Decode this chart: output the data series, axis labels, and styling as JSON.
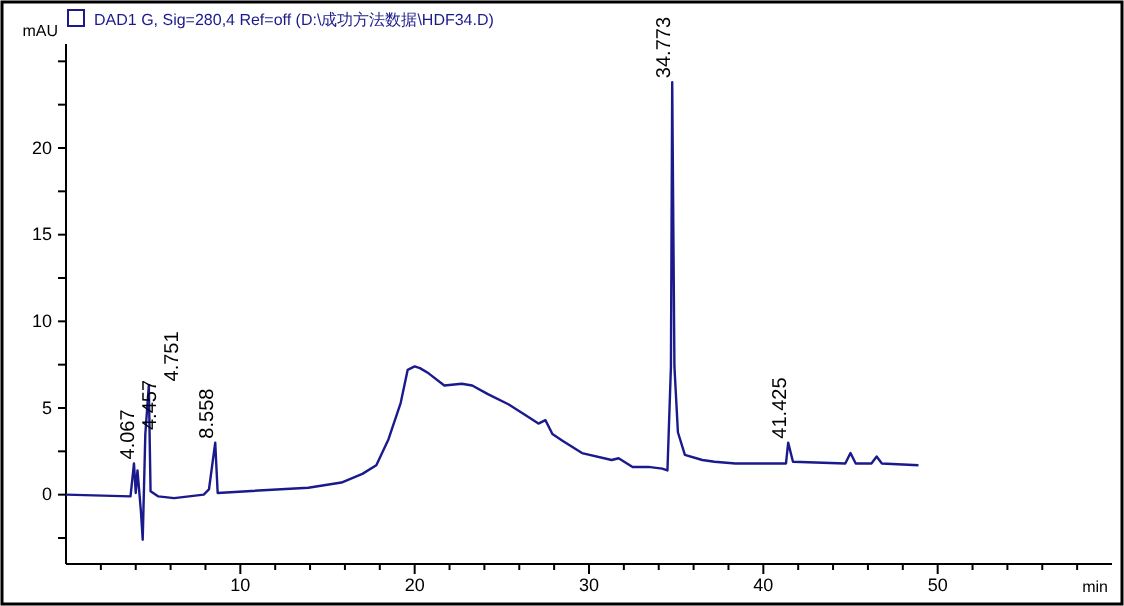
{
  "chart_data": {
    "type": "line",
    "xlabel": "min",
    "ylabel": "mAU",
    "legend": "top left",
    "grid": false,
    "xlim": [
      0,
      60
    ],
    "ylim": [
      -4,
      26
    ],
    "xticks": [
      {
        "value": 2,
        "label": null
      },
      {
        "value": 4,
        "label": null
      },
      {
        "value": 6,
        "label": null
      },
      {
        "value": 8,
        "label": null
      },
      10,
      {
        "value": 12,
        "label": null
      },
      {
        "value": 14,
        "label": null
      },
      {
        "value": 16,
        "label": null
      },
      {
        "value": 18,
        "label": null
      },
      20,
      {
        "value": 22,
        "label": null
      },
      {
        "value": 24,
        "label": null
      },
      {
        "value": 26,
        "label": null
      },
      {
        "value": 28,
        "label": null
      },
      30,
      {
        "value": 32,
        "label": null
      },
      {
        "value": 34,
        "label": null
      },
      {
        "value": 36,
        "label": null
      },
      {
        "value": 38,
        "label": null
      },
      40,
      {
        "value": 42,
        "label": null
      },
      {
        "value": 44,
        "label": null
      },
      {
        "value": 46,
        "label": null
      },
      {
        "value": 48,
        "label": null
      },
      50,
      {
        "value": 52,
        "label": null
      },
      {
        "value": 54,
        "label": null
      },
      {
        "value": 56,
        "label": null
      },
      {
        "value": 58,
        "label": null
      }
    ],
    "yticks": [
      {
        "value": -2.5,
        "label": null
      },
      0,
      {
        "value": 2.5,
        "label": null
      },
      5,
      {
        "value": 7.5,
        "label": null
      },
      10,
      {
        "value": 12.5,
        "label": null
      },
      15,
      {
        "value": 17.5,
        "label": null
      },
      20,
      {
        "value": 22.5,
        "label": null
      },
      {
        "value": 25,
        "label": null
      }
    ],
    "series": [
      {
        "name": "DAD1 G, Sig=280,4 Ref=off (D:\\成功方法数据\\HDF34.D)",
        "color": "#1a1a8c",
        "x": [
          0,
          3.7,
          3.9,
          4.0,
          4.1,
          4.2,
          4.3,
          4.4,
          4.55,
          4.75,
          4.85,
          5.3,
          6.2,
          7.9,
          8.2,
          8.56,
          8.7,
          10.4,
          13.9,
          15.8,
          17,
          17.8,
          18.5,
          19.2,
          19.6,
          20.0,
          20.3,
          20.8,
          21.7,
          22.7,
          23.3,
          24.2,
          25.4,
          26.5,
          27.1,
          27.5,
          27.9,
          28.5,
          29.6,
          31.3,
          31.7,
          32.5,
          33.4,
          34.2,
          34.5,
          34.7,
          34.773,
          34.9,
          35.1,
          35.5,
          36.5,
          37.2,
          38.4,
          41.3,
          41.425,
          41.7,
          44.7,
          45.0,
          45.3,
          46.2,
          46.5,
          46.8,
          48.9
        ],
        "values": [
          0,
          -0.1,
          1.8,
          0.1,
          1.4,
          0.2,
          -1.0,
          -2.6,
          3.5,
          6.3,
          0.2,
          -0.1,
          -0.2,
          0,
          0.3,
          3.0,
          0.1,
          0.2,
          0.4,
          0.7,
          1.2,
          1.7,
          3.2,
          5.3,
          7.2,
          7.4,
          7.3,
          7.0,
          6.3,
          6.4,
          6.3,
          5.8,
          5.2,
          4.5,
          4.1,
          4.3,
          3.5,
          3.1,
          2.4,
          2.0,
          2.1,
          1.6,
          1.6,
          1.5,
          1.4,
          7.4,
          23.8,
          7.4,
          3.6,
          2.3,
          2.0,
          1.9,
          1.8,
          1.8,
          3.0,
          1.9,
          1.8,
          2.4,
          1.8,
          1.8,
          2.2,
          1.8,
          1.7
        ]
      }
    ],
    "annotations": [
      {
        "text": "4.067",
        "x": 4.0,
        "y": 1.8
      },
      {
        "text": "4.457",
        "x": 4.457,
        "y": 3.5
      },
      {
        "text": "4.751",
        "x": 4.751,
        "y": 6.3
      },
      {
        "text": "8.558",
        "x": 8.558,
        "y": 3.0
      },
      {
        "text": "34.773",
        "x": 34.773,
        "y": 23.8
      },
      {
        "text": "41.425",
        "x": 41.425,
        "y": 3.0
      }
    ]
  }
}
